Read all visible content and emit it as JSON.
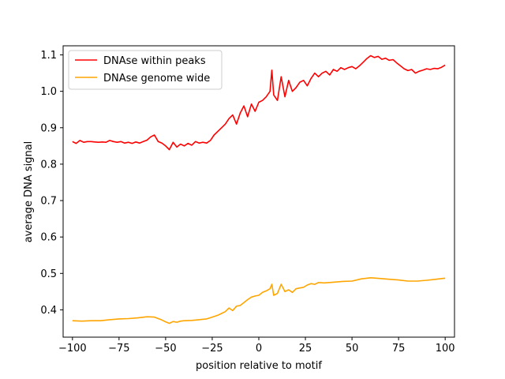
{
  "chart_data": {
    "type": "line",
    "title": "",
    "xlabel": "position relative to motif",
    "ylabel": "average DNA signal",
    "xlim": [
      -105,
      105
    ],
    "ylim": [
      0.325,
      1.125
    ],
    "xticks": [
      -100,
      -75,
      -50,
      -25,
      0,
      25,
      50,
      75,
      100
    ],
    "yticks": [
      0.4,
      0.5,
      0.6,
      0.7,
      0.8,
      0.9,
      1.0,
      1.1
    ],
    "grid": false,
    "legend_position": "top-left",
    "series": [
      {
        "name": "DNAse within peaks",
        "color": "#ff0000",
        "points": [
          [
            -100,
            0.862
          ],
          [
            -98,
            0.857
          ],
          [
            -96,
            0.865
          ],
          [
            -94,
            0.86
          ],
          [
            -92,
            0.862
          ],
          [
            -90,
            0.862
          ],
          [
            -88,
            0.861
          ],
          [
            -86,
            0.86
          ],
          [
            -84,
            0.861
          ],
          [
            -82,
            0.86
          ],
          [
            -80,
            0.865
          ],
          [
            -78,
            0.862
          ],
          [
            -76,
            0.86
          ],
          [
            -74,
            0.862
          ],
          [
            -72,
            0.858
          ],
          [
            -70,
            0.86
          ],
          [
            -68,
            0.857
          ],
          [
            -66,
            0.861
          ],
          [
            -64,
            0.858
          ],
          [
            -62,
            0.862
          ],
          [
            -60,
            0.866
          ],
          [
            -58,
            0.875
          ],
          [
            -56,
            0.88
          ],
          [
            -54,
            0.862
          ],
          [
            -52,
            0.858
          ],
          [
            -50,
            0.85
          ],
          [
            -48,
            0.84
          ],
          [
            -46,
            0.86
          ],
          [
            -44,
            0.847
          ],
          [
            -42,
            0.855
          ],
          [
            -40,
            0.85
          ],
          [
            -38,
            0.857
          ],
          [
            -36,
            0.852
          ],
          [
            -34,
            0.862
          ],
          [
            -32,
            0.858
          ],
          [
            -30,
            0.86
          ],
          [
            -28,
            0.858
          ],
          [
            -26,
            0.865
          ],
          [
            -24,
            0.88
          ],
          [
            -22,
            0.89
          ],
          [
            -20,
            0.9
          ],
          [
            -18,
            0.91
          ],
          [
            -16,
            0.925
          ],
          [
            -14,
            0.935
          ],
          [
            -12,
            0.91
          ],
          [
            -10,
            0.94
          ],
          [
            -8,
            0.96
          ],
          [
            -6,
            0.93
          ],
          [
            -4,
            0.965
          ],
          [
            -2,
            0.945
          ],
          [
            0,
            0.97
          ],
          [
            2,
            0.975
          ],
          [
            4,
            0.985
          ],
          [
            6,
            1.0
          ],
          [
            7,
            1.058
          ],
          [
            8,
            0.99
          ],
          [
            10,
            0.975
          ],
          [
            12,
            1.04
          ],
          [
            14,
            0.985
          ],
          [
            16,
            1.03
          ],
          [
            18,
            1.0
          ],
          [
            20,
            1.01
          ],
          [
            22,
            1.025
          ],
          [
            24,
            1.03
          ],
          [
            26,
            1.015
          ],
          [
            28,
            1.035
          ],
          [
            30,
            1.05
          ],
          [
            32,
            1.04
          ],
          [
            34,
            1.05
          ],
          [
            36,
            1.055
          ],
          [
            38,
            1.045
          ],
          [
            40,
            1.06
          ],
          [
            42,
            1.055
          ],
          [
            44,
            1.065
          ],
          [
            46,
            1.06
          ],
          [
            48,
            1.065
          ],
          [
            50,
            1.068
          ],
          [
            52,
            1.062
          ],
          [
            54,
            1.07
          ],
          [
            56,
            1.08
          ],
          [
            58,
            1.09
          ],
          [
            60,
            1.098
          ],
          [
            62,
            1.093
          ],
          [
            64,
            1.096
          ],
          [
            66,
            1.088
          ],
          [
            68,
            1.091
          ],
          [
            70,
            1.085
          ],
          [
            72,
            1.087
          ],
          [
            74,
            1.078
          ],
          [
            76,
            1.07
          ],
          [
            78,
            1.062
          ],
          [
            80,
            1.057
          ],
          [
            82,
            1.06
          ],
          [
            84,
            1.05
          ],
          [
            86,
            1.055
          ],
          [
            88,
            1.058
          ],
          [
            90,
            1.062
          ],
          [
            92,
            1.06
          ],
          [
            94,
            1.063
          ],
          [
            96,
            1.062
          ],
          [
            98,
            1.066
          ],
          [
            100,
            1.072
          ]
        ]
      },
      {
        "name": "DNAse genome wide",
        "color": "#ffa500",
        "points": [
          [
            -100,
            0.37
          ],
          [
            -95,
            0.369
          ],
          [
            -90,
            0.37
          ],
          [
            -85,
            0.37
          ],
          [
            -80,
            0.373
          ],
          [
            -75,
            0.375
          ],
          [
            -70,
            0.376
          ],
          [
            -65,
            0.378
          ],
          [
            -60,
            0.381
          ],
          [
            -56,
            0.38
          ],
          [
            -52,
            0.372
          ],
          [
            -50,
            0.367
          ],
          [
            -48,
            0.363
          ],
          [
            -46,
            0.368
          ],
          [
            -44,
            0.366
          ],
          [
            -42,
            0.369
          ],
          [
            -40,
            0.37
          ],
          [
            -36,
            0.371
          ],
          [
            -32,
            0.373
          ],
          [
            -28,
            0.375
          ],
          [
            -25,
            0.38
          ],
          [
            -22,
            0.385
          ],
          [
            -20,
            0.39
          ],
          [
            -18,
            0.395
          ],
          [
            -16,
            0.405
          ],
          [
            -14,
            0.398
          ],
          [
            -12,
            0.41
          ],
          [
            -10,
            0.412
          ],
          [
            -8,
            0.42
          ],
          [
            -6,
            0.428
          ],
          [
            -4,
            0.435
          ],
          [
            -2,
            0.438
          ],
          [
            0,
            0.44
          ],
          [
            2,
            0.448
          ],
          [
            4,
            0.452
          ],
          [
            6,
            0.458
          ],
          [
            7,
            0.47
          ],
          [
            8,
            0.44
          ],
          [
            10,
            0.445
          ],
          [
            12,
            0.47
          ],
          [
            14,
            0.45
          ],
          [
            16,
            0.455
          ],
          [
            18,
            0.448
          ],
          [
            20,
            0.458
          ],
          [
            22,
            0.46
          ],
          [
            24,
            0.462
          ],
          [
            26,
            0.468
          ],
          [
            28,
            0.472
          ],
          [
            30,
            0.47
          ],
          [
            32,
            0.475
          ],
          [
            35,
            0.474
          ],
          [
            40,
            0.476
          ],
          [
            45,
            0.478
          ],
          [
            50,
            0.479
          ],
          [
            55,
            0.485
          ],
          [
            60,
            0.488
          ],
          [
            65,
            0.486
          ],
          [
            70,
            0.484
          ],
          [
            75,
            0.482
          ],
          [
            80,
            0.479
          ],
          [
            85,
            0.479
          ],
          [
            90,
            0.481
          ],
          [
            95,
            0.484
          ],
          [
            100,
            0.487
          ]
        ]
      }
    ]
  }
}
